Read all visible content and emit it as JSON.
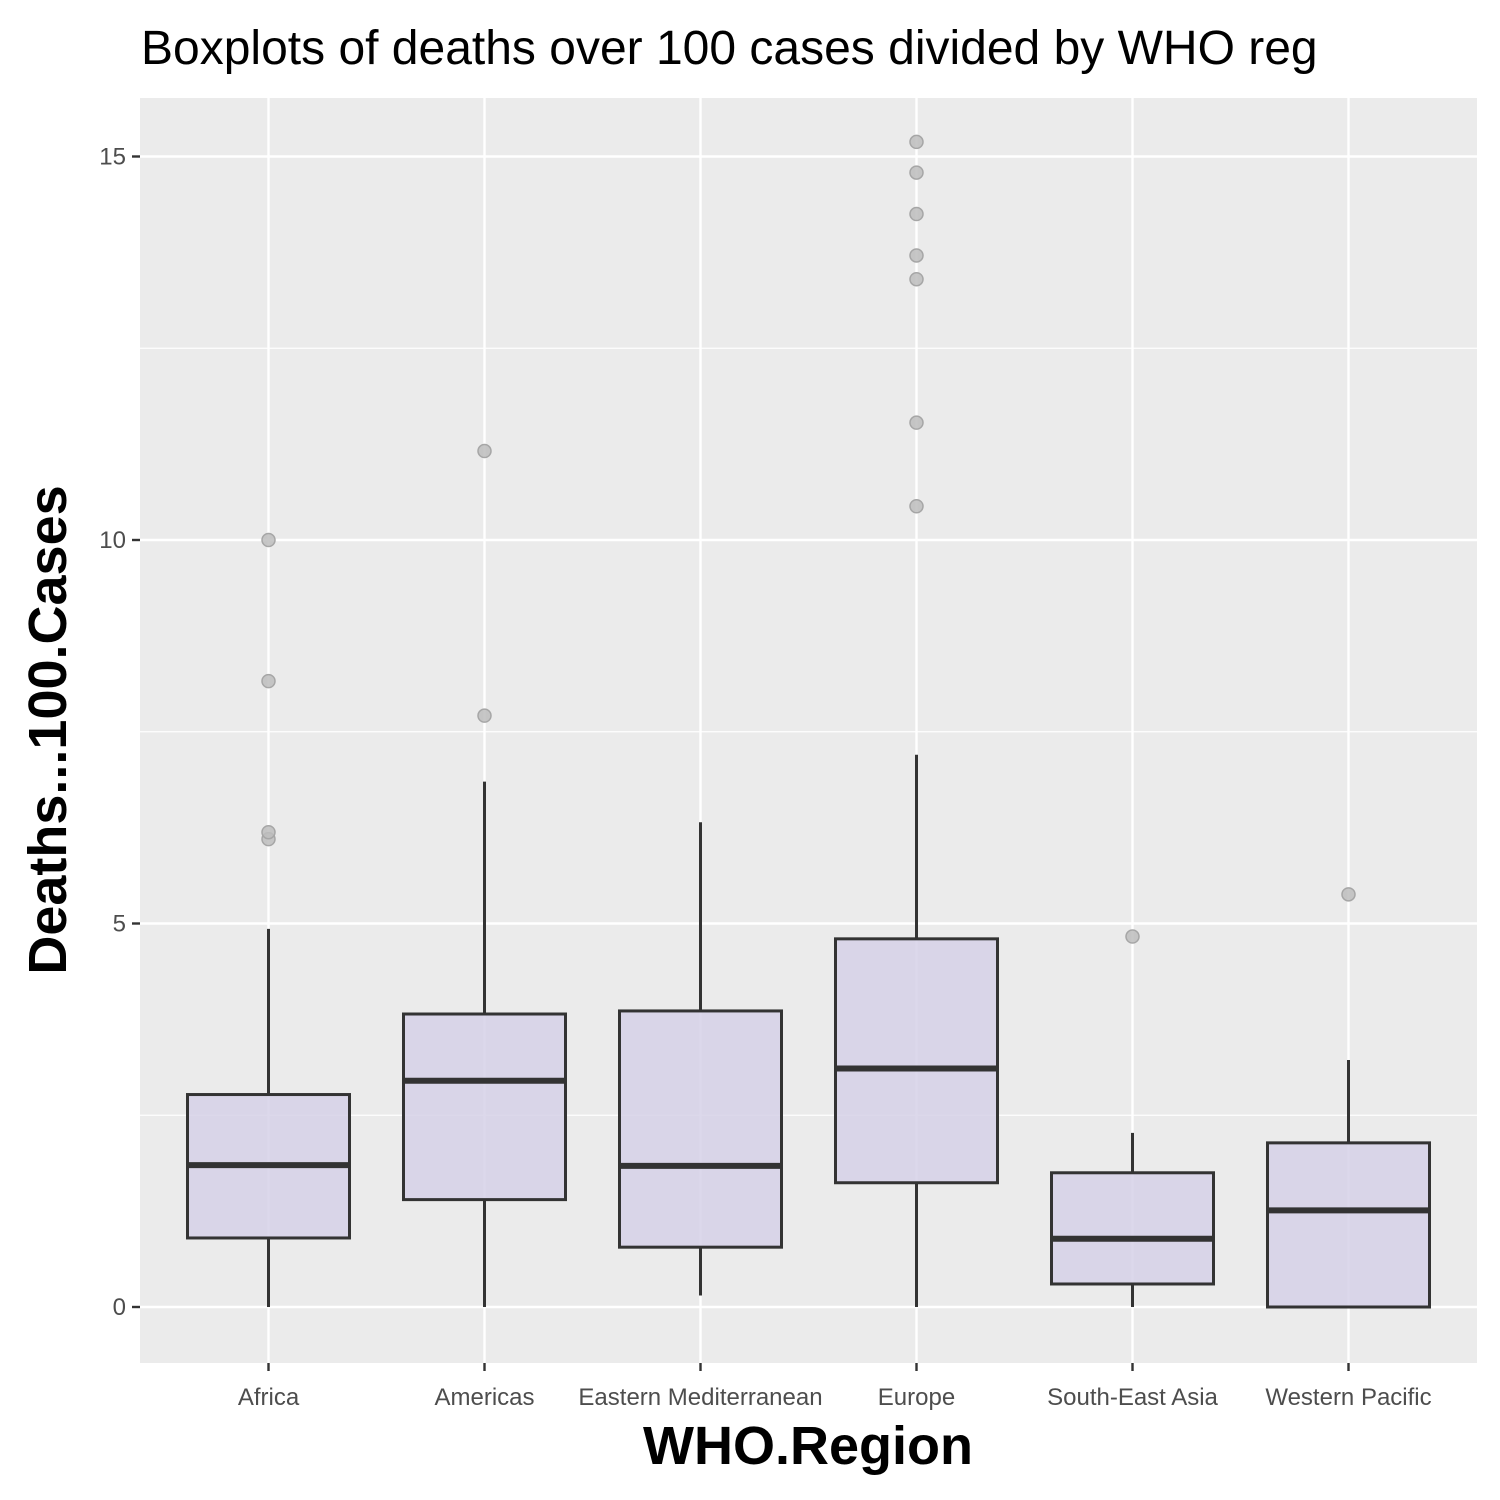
{
  "chart_data": {
    "type": "boxplot",
    "title": "Boxplots of deaths over 100 cases divided by WHO reg",
    "xlabel": "WHO.Region",
    "ylabel": "Deaths...100.Cases",
    "ylim": [
      -0.73,
      15.75
    ],
    "yticks": [
      0,
      5,
      10,
      15
    ],
    "grid": true,
    "colors": {
      "panel": "#ebebeb",
      "grid": "#ffffff",
      "box_fill": "#d4d0e6",
      "box_stroke": "#333333",
      "outlier": "#bdbdbd",
      "outlier_stroke": "#a6a6a6"
    },
    "categories": [
      "Africa",
      "Americas",
      "Eastern Mediterranean",
      "Europe",
      "South-East Asia",
      "Western Pacific"
    ],
    "series": [
      {
        "category": "Africa",
        "whisker_low": 0.0,
        "q1": 0.9,
        "median": 1.85,
        "q3": 2.77,
        "whisker_high": 4.93,
        "outliers": [
          6.1,
          6.19,
          8.16,
          10.0
        ]
      },
      {
        "category": "Americas",
        "whisker_low": 0.0,
        "q1": 1.4,
        "median": 2.95,
        "q3": 3.82,
        "whisker_high": 6.85,
        "outliers": [
          7.71,
          11.16
        ]
      },
      {
        "category": "Eastern Mediterranean",
        "whisker_low": 0.15,
        "q1": 0.78,
        "median": 1.84,
        "q3": 3.86,
        "whisker_high": 6.32,
        "outliers": []
      },
      {
        "category": "Europe",
        "whisker_low": 0.0,
        "q1": 1.62,
        "median": 3.11,
        "q3": 4.8,
        "whisker_high": 7.2,
        "outliers": [
          10.44,
          11.53,
          13.4,
          13.71,
          14.25,
          14.79,
          15.19
        ]
      },
      {
        "category": "South-East Asia",
        "whisker_low": 0.0,
        "q1": 0.3,
        "median": 0.89,
        "q3": 1.75,
        "whisker_high": 2.27,
        "outliers": [
          4.83
        ]
      },
      {
        "category": "Western Pacific",
        "whisker_low": 0.0,
        "q1": 0.0,
        "median": 1.26,
        "q3": 2.14,
        "whisker_high": 3.22,
        "outliers": [
          5.38
        ]
      }
    ]
  }
}
